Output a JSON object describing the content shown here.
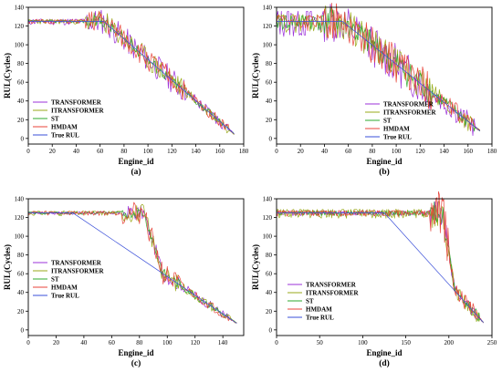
{
  "chart_data": [
    {
      "type": "line",
      "panel_label": "(a)",
      "xlabel": "Engine_id",
      "ylabel": "RUL(Cycles)",
      "xlim": [
        0,
        180
      ],
      "ylim": [
        -6,
        140
      ],
      "xticks": [
        0,
        20,
        40,
        60,
        80,
        100,
        120,
        140,
        160,
        180
      ],
      "yticks": [
        0,
        20,
        40,
        60,
        80,
        100,
        120,
        140
      ],
      "legend_position": "lower-left",
      "true_rul": {
        "cap": 125,
        "knee": 63,
        "end_x": 172,
        "end_y": 5
      },
      "series": [
        {
          "name": "TRANSFORMER",
          "color": "#9b30d9",
          "noise": [
            4,
            14,
            7
          ],
          "seed": 11
        },
        {
          "name": "ITRANSFORMER",
          "color": "#9aaa1a",
          "noise": [
            3,
            12,
            6
          ],
          "seed": 23
        },
        {
          "name": "ST",
          "color": "#2eaa2e",
          "noise": [
            2,
            6,
            4
          ],
          "seed": 37
        },
        {
          "name": "HMDAM",
          "color": "#e8433a",
          "noise": [
            3,
            12,
            6
          ],
          "seed": 51
        },
        {
          "name": "True RUL",
          "color": "#3a4fd9",
          "noise": [
            0,
            0,
            0
          ],
          "seed": 0
        }
      ]
    },
    {
      "type": "line",
      "panel_label": "(b)",
      "xlabel": "Engine_id",
      "ylabel": "RUL(Cycles)",
      "xlim": [
        0,
        180
      ],
      "ylim": [
        -6,
        140
      ],
      "xticks": [
        0,
        20,
        40,
        60,
        80,
        100,
        120,
        140,
        160,
        180
      ],
      "yticks": [
        0,
        20,
        40,
        60,
        80,
        100,
        120,
        140
      ],
      "legend_position": "lower-right",
      "true_rul": {
        "cap": 125,
        "knee": 55,
        "end_x": 170,
        "end_y": 8
      },
      "series": [
        {
          "name": "TRANSFORMER",
          "color": "#9b30d9",
          "noise": [
            18,
            22,
            12
          ],
          "seed": 13
        },
        {
          "name": "ITRANSFORMER",
          "color": "#9aaa1a",
          "noise": [
            12,
            18,
            10
          ],
          "seed": 29
        },
        {
          "name": "ST",
          "color": "#2eaa2e",
          "noise": [
            10,
            15,
            8
          ],
          "seed": 41
        },
        {
          "name": "HMDAM",
          "color": "#e8433a",
          "noise": [
            10,
            20,
            10
          ],
          "seed": 57
        },
        {
          "name": "True RUL",
          "color": "#3a4fd9",
          "noise": [
            0,
            0,
            0
          ],
          "seed": 0
        }
      ]
    },
    {
      "type": "line",
      "panel_label": "(c)",
      "xlabel": "Engine_id",
      "ylabel": "RUL(Cycles)",
      "xlim": [
        0,
        155
      ],
      "ylim": [
        -6,
        140
      ],
      "xticks": [
        0,
        20,
        40,
        60,
        80,
        100,
        120,
        140
      ],
      "yticks": [
        0,
        20,
        40,
        60,
        80,
        100,
        120,
        140
      ],
      "legend_position": "lower-left",
      "true_rul": {
        "cap": 125,
        "knee": 32,
        "end_x": 150,
        "end_y": 7
      },
      "pred_knee": 83,
      "series": [
        {
          "name": "TRANSFORMER",
          "color": "#9b30d9",
          "noise": [
            2,
            8,
            5
          ],
          "seed": 17
        },
        {
          "name": "ITRANSFORMER",
          "color": "#9aaa1a",
          "noise": [
            3,
            10,
            5
          ],
          "seed": 31
        },
        {
          "name": "ST",
          "color": "#2eaa2e",
          "noise": [
            2,
            6,
            4
          ],
          "seed": 43
        },
        {
          "name": "HMDAM",
          "color": "#e8433a",
          "noise": [
            3,
            12,
            5
          ],
          "seed": 59
        },
        {
          "name": "True RUL",
          "color": "#3a4fd9",
          "noise": [
            0,
            0,
            0
          ],
          "seed": 0
        }
      ]
    },
    {
      "type": "line",
      "panel_label": "(d)",
      "xlabel": "Engine_id",
      "ylabel": "RUL(Cycles)",
      "xlim": [
        0,
        250
      ],
      "ylim": [
        -6,
        140
      ],
      "xticks": [
        0,
        50,
        100,
        150,
        200,
        250
      ],
      "yticks": [
        0,
        20,
        40,
        60,
        80,
        100,
        120,
        140
      ],
      "legend_position": "lower-left",
      "true_rul": {
        "cap": 125,
        "knee": 125,
        "end_x": 240,
        "end_y": 8
      },
      "pred_knee": 193,
      "series": [
        {
          "name": "TRANSFORMER",
          "color": "#9b30d9",
          "noise": [
            3,
            14,
            7
          ],
          "seed": 19
        },
        {
          "name": "ITRANSFORMER",
          "color": "#9aaa1a",
          "noise": [
            6,
            16,
            8
          ],
          "seed": 33
        },
        {
          "name": "ST",
          "color": "#2eaa2e",
          "noise": [
            3,
            12,
            6
          ],
          "seed": 47
        },
        {
          "name": "HMDAM",
          "color": "#e8433a",
          "noise": [
            4,
            24,
            8
          ],
          "seed": 61
        },
        {
          "name": "True RUL",
          "color": "#3a4fd9",
          "noise": [
            0,
            0,
            0
          ],
          "seed": 0
        }
      ]
    }
  ]
}
